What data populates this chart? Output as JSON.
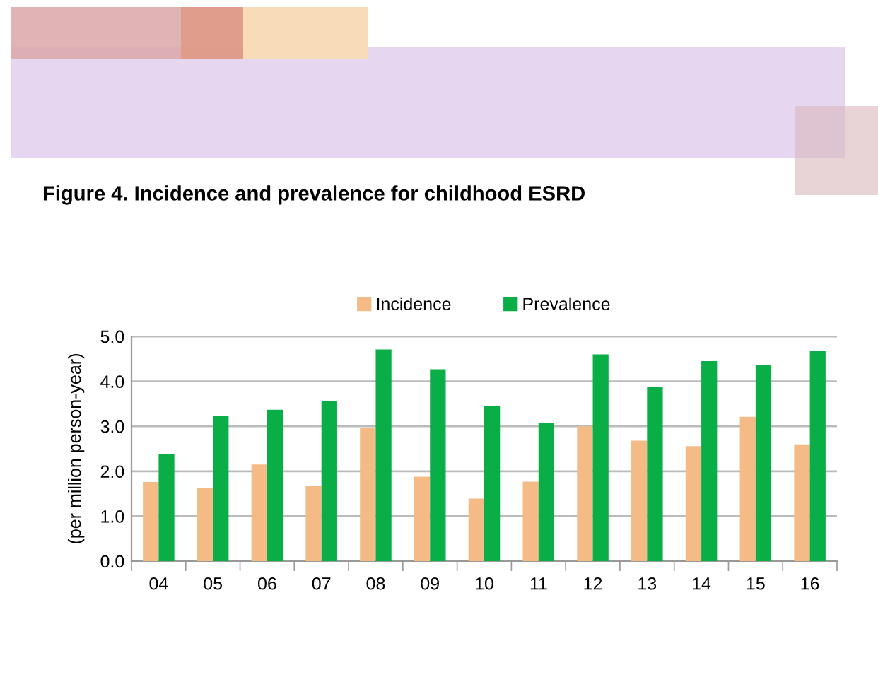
{
  "chart_data": {
    "type": "bar",
    "title": "Figure 4. Incidence and prevalence for childhood ESRD",
    "ylabel": "(per million person-year)",
    "categories": [
      "04",
      "05",
      "06",
      "07",
      "08",
      "09",
      "10",
      "11",
      "12",
      "13",
      "14",
      "15",
      "16"
    ],
    "series": [
      {
        "name": "Incidence",
        "color": "#f5bb87",
        "values": [
          1.76,
          1.63,
          2.15,
          1.67,
          2.96,
          1.88,
          1.39,
          1.77,
          3.0,
          2.68,
          2.56,
          3.21,
          2.6
        ]
      },
      {
        "name": "Prevalence",
        "color": "#0aae47",
        "values": [
          2.38,
          3.23,
          3.37,
          3.57,
          4.71,
          4.27,
          3.46,
          3.08,
          4.6,
          3.88,
          4.45,
          4.37,
          4.68
        ]
      }
    ],
    "ylim": [
      0,
      5
    ],
    "yticks": [
      {
        "value": 0,
        "label": "0.0"
      },
      {
        "value": 1,
        "label": "1.0"
      },
      {
        "value": 2,
        "label": "2.0"
      },
      {
        "value": 3,
        "label": "3.0"
      },
      {
        "value": 4,
        "label": "4.0"
      },
      {
        "value": 5,
        "label": "5.0"
      }
    ],
    "grid": "y",
    "legend": "top"
  }
}
